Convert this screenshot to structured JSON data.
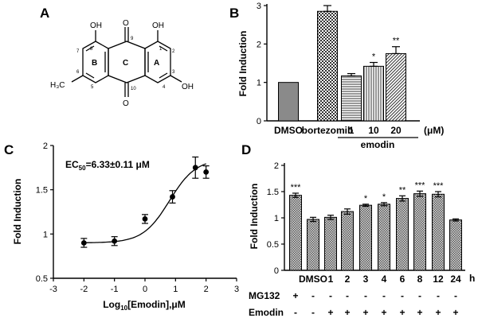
{
  "panel_labels": {
    "a": "A",
    "b": "B",
    "c": "C",
    "d": "D"
  },
  "structure": {
    "hydroxyl": "OH",
    "methyl": "H₃C",
    "oxygen": "O",
    "rings": [
      "B",
      "C",
      "A"
    ],
    "numbers": [
      "1",
      "2",
      "3",
      "4",
      "5",
      "6",
      "7",
      "8",
      "9",
      "10"
    ]
  },
  "chart_data": [
    {
      "id": "B",
      "type": "bar",
      "ylabel": "Fold Induction",
      "ylim": [
        0,
        3
      ],
      "yticks": [
        0,
        1,
        2,
        3
      ],
      "categories": [
        "DMSO",
        "bortezomib",
        "1",
        "10",
        "20"
      ],
      "values": [
        1.0,
        2.85,
        1.17,
        1.42,
        1.75
      ],
      "errors": [
        0,
        0.15,
        0.06,
        0.1,
        0.18
      ],
      "patterns": [
        "gray",
        "check",
        "hline",
        "vline",
        "diag"
      ],
      "significance": [
        "",
        "***",
        "",
        "*",
        "**"
      ],
      "group_label": "emodin",
      "unit_label": "(μM)"
    },
    {
      "id": "C",
      "type": "scatter",
      "ylabel": "Fold Induction",
      "xlabel": "Log10[Emodin],μM",
      "xlabel_base": "Log",
      "xlabel_sub": "10",
      "xlabel_rest": "[Emodin],μM",
      "annotation_main": "EC",
      "annotation_sub": "50",
      "annotation_rest": "=6.33±0.11 μM",
      "xlim": [
        -3,
        3
      ],
      "ylim": [
        0.5,
        2.0
      ],
      "xticks": [
        -3,
        -2,
        -1,
        0,
        1,
        2,
        3
      ],
      "yticks": [
        0.5,
        1.0,
        1.5,
        2.0
      ],
      "x": [
        -2,
        -1,
        0,
        0.9,
        1.65,
        2
      ],
      "y": [
        0.9,
        0.92,
        1.17,
        1.42,
        1.75,
        1.7
      ],
      "errors": [
        0.05,
        0.05,
        0.05,
        0.07,
        0.12,
        0.07
      ],
      "fit": {
        "bottom": 0.9,
        "top": 1.85,
        "logEC50": 0.8,
        "hill": 1.0
      }
    },
    {
      "id": "D",
      "type": "bar",
      "ylabel": "Fold Induction",
      "ylim": [
        0,
        2.0
      ],
      "yticks": [
        0.0,
        0.5,
        1.0,
        1.5,
        2.0
      ],
      "categories": [
        "",
        "DMSO",
        "1",
        "2",
        "3",
        "4",
        "6",
        "8",
        "12",
        "24"
      ],
      "values": [
        1.43,
        0.97,
        1.01,
        1.12,
        1.24,
        1.26,
        1.37,
        1.46,
        1.45,
        0.96
      ],
      "errors": [
        0.04,
        0.04,
        0.04,
        0.05,
        0.02,
        0.03,
        0.05,
        0.05,
        0.05,
        0.02
      ],
      "significance": [
        "***",
        "",
        "",
        "",
        "*",
        "*",
        "**",
        "***",
        "***",
        ""
      ],
      "x_unit": "h",
      "rows": [
        {
          "label": "MG132",
          "marks": [
            "+",
            "-",
            "-",
            "-",
            "-",
            "-",
            "-",
            "-",
            "-",
            "-"
          ]
        },
        {
          "label": "Emodin",
          "marks": [
            "-",
            "-",
            "+",
            "+",
            "+",
            "+",
            "+",
            "+",
            "+",
            "+"
          ]
        }
      ]
    }
  ]
}
